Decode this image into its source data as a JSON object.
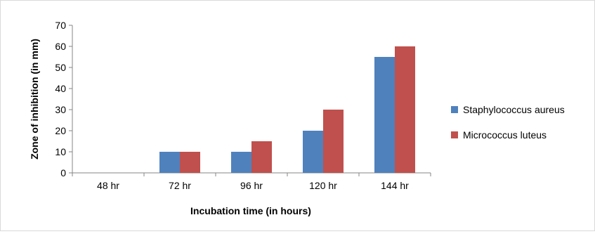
{
  "chart_data": {
    "type": "bar",
    "categories": [
      "48 hr",
      "72 hr",
      "96 hr",
      "120 hr",
      "144 hr"
    ],
    "series": [
      {
        "name": "Staphylococcus aureus",
        "color": "#4f81bd",
        "values": [
          0,
          10,
          10,
          20,
          55
        ]
      },
      {
        "name": "Micrococcus luteus",
        "color": "#c0504d",
        "values": [
          0,
          10,
          15,
          30,
          60
        ]
      }
    ],
    "xlabel": "Incubation time (in hours)",
    "ylabel": "Zone of inhibition (in mm)",
    "ylim": [
      0,
      70
    ],
    "yticks": [
      0,
      10,
      20,
      30,
      40,
      50,
      60,
      70
    ],
    "grid": false,
    "legend_position": "right"
  }
}
